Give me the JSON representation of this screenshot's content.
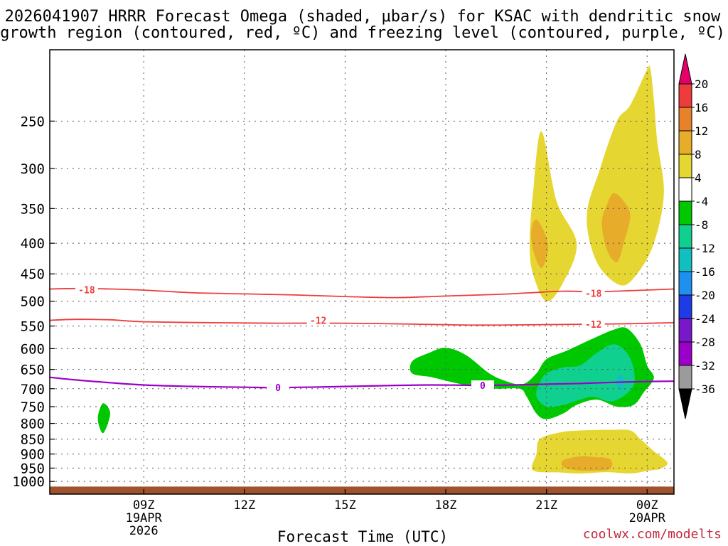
{
  "chart_data": {
    "type": "contour",
    "title_line1": "2026041907 HRRR Forecast Omega (shaded, μbar/s) for KSAC with dendritic snow",
    "title_line2": "growth region (contoured, red, ºC) and freezing level (contoured, purple, ºC)",
    "xlabel": "Forecast Time (UTC)",
    "credit": "coolwx.com/modelts",
    "xlim": [
      6.2,
      24.8
    ],
    "ylim": [
      1050,
      190
    ],
    "y_ticks": [
      250,
      300,
      350,
      400,
      450,
      500,
      550,
      600,
      650,
      700,
      750,
      800,
      850,
      900,
      950,
      1000
    ],
    "y_tick_labels": [
      "250",
      "300",
      "350",
      "400",
      "450",
      "500",
      "550",
      "600",
      "650",
      "700",
      "750",
      "800",
      "850",
      "900",
      "950",
      "1000"
    ],
    "x_ticks": [
      {
        "x": 9,
        "lines": [
          "09Z",
          "19APR",
          "2026"
        ]
      },
      {
        "x": 12,
        "lines": [
          "12Z"
        ]
      },
      {
        "x": 15,
        "lines": [
          "15Z"
        ]
      },
      {
        "x": 18,
        "lines": [
          "18Z"
        ]
      },
      {
        "x": 21,
        "lines": [
          "21Z"
        ]
      },
      {
        "x": 24,
        "lines": [
          "00Z",
          "20APR"
        ]
      }
    ],
    "ground_level_hpa": 1020,
    "ground_color": "#a0522d",
    "colorbar": {
      "labels": [
        "20",
        "16",
        "12",
        "8",
        "4",
        "-4",
        "-8",
        "-12",
        "-16",
        "-20",
        "-24",
        "-28",
        "-32",
        "-36"
      ],
      "colors": [
        "#e8006a",
        "#ee3c3c",
        "#e8822a",
        "#e6ac2a",
        "#e6d632",
        "#ffffff",
        "#00c800",
        "#10d090",
        "#10c0c0",
        "#1e90f0",
        "#1e3ce6",
        "#7818c8",
        "#9c00c8",
        "#9b9b9b",
        "#000000"
      ]
    },
    "omega_regions": [
      {
        "value_range": "4 to 8",
        "color": "#e6d632",
        "points": [
          [
            20.85,
            260
          ],
          [
            21.3,
            340
          ],
          [
            21.9,
            400
          ],
          [
            21.5,
            465
          ],
          [
            21.0,
            500
          ],
          [
            20.6,
            450
          ],
          [
            20.5,
            400
          ],
          [
            20.6,
            330
          ]
        ]
      },
      {
        "value_range": "8 to 12",
        "color": "#e6ac2a",
        "points": [
          [
            20.7,
            365
          ],
          [
            20.95,
            385
          ],
          [
            21.05,
            410
          ],
          [
            20.85,
            440
          ],
          [
            20.6,
            410
          ],
          [
            20.55,
            380
          ]
        ]
      },
      {
        "value_range": "4 to 8",
        "color": "#e6d632",
        "points": [
          [
            24.1,
            205
          ],
          [
            24.2,
            230
          ],
          [
            24.3,
            270
          ],
          [
            24.5,
            330
          ],
          [
            24.2,
            400
          ],
          [
            23.7,
            450
          ],
          [
            23.2,
            470
          ],
          [
            22.5,
            430
          ],
          [
            22.2,
            360
          ],
          [
            22.6,
            300
          ],
          [
            23.1,
            250
          ],
          [
            23.5,
            235
          ],
          [
            24.0,
            205
          ]
        ]
      },
      {
        "value_range": "8 to 12",
        "color": "#e6ac2a",
        "points": [
          [
            23.0,
            330
          ],
          [
            23.3,
            340
          ],
          [
            23.5,
            360
          ],
          [
            23.3,
            400
          ],
          [
            23.1,
            430
          ],
          [
            22.8,
            410
          ],
          [
            22.65,
            370
          ],
          [
            22.8,
            345
          ]
        ]
      },
      {
        "value_range": "-4 to -8",
        "color": "#00c800",
        "points": [
          [
            7.8,
            740
          ],
          [
            8.0,
            770
          ],
          [
            7.8,
            830
          ],
          [
            7.65,
            800
          ],
          [
            7.65,
            770
          ]
        ]
      },
      {
        "value_range": "-4 to -8",
        "color": "#00c800",
        "points": [
          [
            17.0,
            630
          ],
          [
            17.5,
            610
          ],
          [
            18.0,
            598
          ],
          [
            18.6,
            615
          ],
          [
            19.3,
            660
          ],
          [
            19.8,
            680
          ],
          [
            20.3,
            688
          ],
          [
            20.7,
            660
          ],
          [
            21.0,
            625
          ],
          [
            21.6,
            605
          ],
          [
            22.3,
            580
          ],
          [
            23.0,
            558
          ],
          [
            23.4,
            555
          ],
          [
            23.8,
            590
          ],
          [
            24.0,
            640
          ],
          [
            24.2,
            672
          ],
          [
            23.9,
            710
          ],
          [
            23.6,
            745
          ],
          [
            23.1,
            750
          ],
          [
            22.5,
            730
          ],
          [
            21.9,
            745
          ],
          [
            21.5,
            770
          ],
          [
            21.0,
            787
          ],
          [
            20.7,
            770
          ],
          [
            20.4,
            720
          ],
          [
            20.2,
            700
          ],
          [
            19.5,
            700
          ],
          [
            18.9,
            696
          ],
          [
            18.3,
            685
          ],
          [
            17.6,
            670
          ],
          [
            17.0,
            660
          ]
        ]
      },
      {
        "value_range": "-8 to -12",
        "color": "#10d090",
        "points": [
          [
            21.0,
            660
          ],
          [
            21.5,
            645
          ],
          [
            22.0,
            640
          ],
          [
            22.5,
            610
          ],
          [
            23.0,
            590
          ],
          [
            23.4,
            610
          ],
          [
            23.6,
            650
          ],
          [
            23.6,
            690
          ],
          [
            23.3,
            720
          ],
          [
            22.9,
            735
          ],
          [
            22.4,
            722
          ],
          [
            22.0,
            730
          ],
          [
            21.5,
            745
          ],
          [
            21.0,
            750
          ],
          [
            20.7,
            720
          ],
          [
            20.8,
            685
          ]
        ]
      },
      {
        "value_range": "-12 to -16",
        "color": "#10c0c0",
        "points": [
          [
            23.15,
            660
          ],
          [
            23.3,
            675
          ],
          [
            23.25,
            705
          ],
          [
            23.1,
            690
          ]
        ]
      },
      {
        "value_range": "4 to 8",
        "color": "#e6d632",
        "points": [
          [
            20.8,
            850
          ],
          [
            21.4,
            828
          ],
          [
            22.0,
            822
          ],
          [
            22.9,
            820
          ],
          [
            23.5,
            822
          ],
          [
            23.8,
            850
          ],
          [
            24.2,
            890
          ],
          [
            24.6,
            930
          ],
          [
            24.4,
            952
          ],
          [
            24.0,
            960
          ],
          [
            23.5,
            970
          ],
          [
            22.8,
            965
          ],
          [
            22.0,
            970
          ],
          [
            21.4,
            966
          ],
          [
            20.6,
            958
          ],
          [
            20.7,
            900
          ]
        ]
      },
      {
        "value_range": "8 to 12",
        "color": "#e6ac2a",
        "points": [
          [
            21.5,
            922
          ],
          [
            22.0,
            908
          ],
          [
            22.4,
            910
          ],
          [
            22.9,
            918
          ],
          [
            22.9,
            952
          ],
          [
            22.4,
            960
          ],
          [
            21.9,
            958
          ],
          [
            21.5,
            946
          ]
        ]
      }
    ],
    "contours": [
      {
        "name": "-18",
        "color": "#ee3c3c",
        "label_positions": [
          [
            7.3,
            478
          ],
          [
            22.4,
            485
          ]
        ],
        "points": [
          [
            6.2,
            477
          ],
          [
            7.0,
            476
          ],
          [
            8.0,
            477
          ],
          [
            9.0,
            479
          ],
          [
            10.5,
            484
          ],
          [
            12.0,
            486
          ],
          [
            13.5,
            488
          ],
          [
            15.0,
            491
          ],
          [
            16.5,
            493
          ],
          [
            18.0,
            490
          ],
          [
            19.5,
            487
          ],
          [
            20.5,
            484
          ],
          [
            21.5,
            481
          ],
          [
            22.5,
            482
          ],
          [
            23.5,
            480
          ],
          [
            24.8,
            477
          ]
        ]
      },
      {
        "name": "-12",
        "color": "#ee3c3c",
        "label_positions": [
          [
            14.2,
            538
          ],
          [
            22.4,
            546
          ]
        ],
        "points": [
          [
            6.2,
            538
          ],
          [
            7.0,
            536
          ],
          [
            8.0,
            537
          ],
          [
            9.0,
            541
          ],
          [
            11.0,
            543
          ],
          [
            13.0,
            544
          ],
          [
            15.0,
            544
          ],
          [
            17.0,
            546
          ],
          [
            19.0,
            548
          ],
          [
            21.0,
            547
          ],
          [
            22.5,
            546
          ],
          [
            23.5,
            545
          ],
          [
            24.8,
            543
          ]
        ]
      },
      {
        "name": "0",
        "color": "#9c00c8",
        "label_positions": [
          [
            13.0,
            697
          ],
          [
            19.1,
            691
          ]
        ],
        "points": [
          [
            6.2,
            670
          ],
          [
            7.0,
            677
          ],
          [
            8.0,
            684
          ],
          [
            9.0,
            690
          ],
          [
            10.5,
            694
          ],
          [
            12.0,
            696
          ],
          [
            13.0,
            697
          ],
          [
            14.5,
            695
          ],
          [
            16.0,
            692
          ],
          [
            17.5,
            690
          ],
          [
            19.0,
            691
          ],
          [
            20.0,
            690
          ],
          [
            21.0,
            688
          ],
          [
            22.0,
            686
          ],
          [
            23.0,
            683
          ],
          [
            24.0,
            681
          ],
          [
            24.8,
            680
          ]
        ]
      }
    ]
  }
}
